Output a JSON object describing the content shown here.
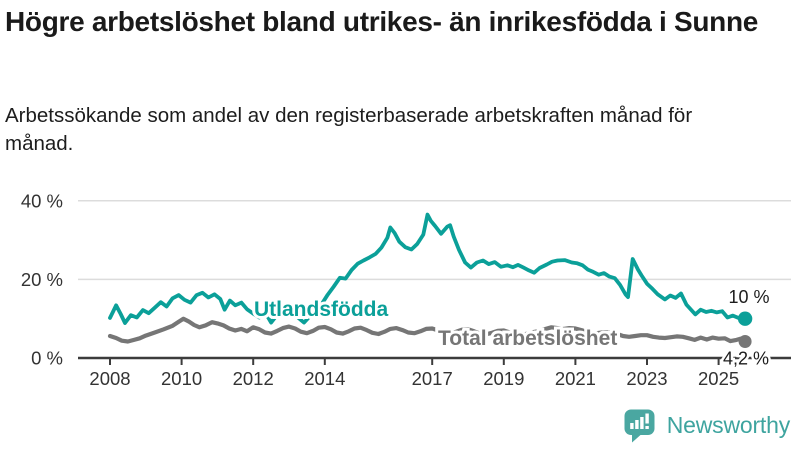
{
  "header": {
    "title": "Högre arbetslöshet bland utrikes- än inrikesfödda i Sunne",
    "subtitle": "Arbetssökande som andel av den registerbaserade arbetskraften månad för månad."
  },
  "colors": {
    "accent_teal": "#0ba099",
    "logo_teal": "#4aa7a1",
    "brand_text_teal": "#3ea49f",
    "series_gray": "#767676",
    "gridline": "#dcdcdc",
    "axis": "#3c3c3c",
    "axis_text": "#333333",
    "end_label_text": "#1d1d1d"
  },
  "chart_data": {
    "type": "line",
    "unit": "%",
    "x_axis": {
      "ticks": [
        2008,
        2010,
        2012,
        2014,
        2017,
        2019,
        2021,
        2023,
        2025
      ],
      "tick_labels": [
        "2008",
        "2010",
        "2012",
        "2014",
        "2017",
        "2019",
        "2021",
        "2023",
        "2025"
      ],
      "range": [
        2007.6,
        2026.2
      ]
    },
    "y_axis": {
      "ticks": [
        0,
        20,
        40
      ],
      "tick_labels": [
        "0 %",
        "20 %",
        "40 %"
      ],
      "range": [
        0,
        42
      ],
      "gridlines": true
    },
    "legend_position": "inline-labels",
    "series": [
      {
        "name": "Total arbetslöshet",
        "color": "#767676",
        "end_label": "4,2 %",
        "end_value": 4.2,
        "points": [
          [
            2008.0,
            5.6
          ],
          [
            2008.17,
            5.1
          ],
          [
            2008.33,
            4.4
          ],
          [
            2008.5,
            4.2
          ],
          [
            2008.67,
            4.6
          ],
          [
            2008.83,
            5.0
          ],
          [
            2009.0,
            5.7
          ],
          [
            2009.25,
            6.5
          ],
          [
            2009.5,
            7.3
          ],
          [
            2009.75,
            8.2
          ],
          [
            2009.92,
            9.2
          ],
          [
            2010.05,
            10.0
          ],
          [
            2010.2,
            9.3
          ],
          [
            2010.35,
            8.4
          ],
          [
            2010.5,
            7.8
          ],
          [
            2010.67,
            8.3
          ],
          [
            2010.85,
            9.1
          ],
          [
            2011.0,
            8.8
          ],
          [
            2011.17,
            8.3
          ],
          [
            2011.33,
            7.5
          ],
          [
            2011.5,
            7.0
          ],
          [
            2011.67,
            7.4
          ],
          [
            2011.83,
            6.8
          ],
          [
            2012.0,
            7.8
          ],
          [
            2012.17,
            7.3
          ],
          [
            2012.33,
            6.5
          ],
          [
            2012.5,
            6.2
          ],
          [
            2012.67,
            6.9
          ],
          [
            2012.83,
            7.6
          ],
          [
            2013.0,
            8.0
          ],
          [
            2013.17,
            7.5
          ],
          [
            2013.33,
            6.7
          ],
          [
            2013.5,
            6.3
          ],
          [
            2013.67,
            6.9
          ],
          [
            2013.83,
            7.7
          ],
          [
            2014.0,
            7.9
          ],
          [
            2014.17,
            7.3
          ],
          [
            2014.33,
            6.5
          ],
          [
            2014.5,
            6.2
          ],
          [
            2014.67,
            6.8
          ],
          [
            2014.83,
            7.5
          ],
          [
            2015.0,
            7.7
          ],
          [
            2015.17,
            7.1
          ],
          [
            2015.33,
            6.4
          ],
          [
            2015.5,
            6.1
          ],
          [
            2015.67,
            6.7
          ],
          [
            2015.83,
            7.4
          ],
          [
            2016.0,
            7.6
          ],
          [
            2016.17,
            7.1
          ],
          [
            2016.33,
            6.5
          ],
          [
            2016.5,
            6.3
          ],
          [
            2016.67,
            6.8
          ],
          [
            2016.83,
            7.4
          ],
          [
            2017.0,
            7.5
          ],
          [
            2017.17,
            7.0
          ],
          [
            2017.33,
            6.4
          ],
          [
            2017.5,
            6.2
          ],
          [
            2017.67,
            6.7
          ],
          [
            2017.83,
            7.2
          ],
          [
            2018.0,
            7.3
          ],
          [
            2018.17,
            6.8
          ],
          [
            2018.33,
            6.2
          ],
          [
            2018.5,
            6.0
          ],
          [
            2018.67,
            6.4
          ],
          [
            2018.83,
            6.9
          ],
          [
            2019.0,
            7.0
          ],
          [
            2019.17,
            6.5
          ],
          [
            2019.33,
            6.1
          ],
          [
            2019.5,
            5.9
          ],
          [
            2019.67,
            6.2
          ],
          [
            2019.83,
            6.6
          ],
          [
            2020.0,
            6.9
          ],
          [
            2020.17,
            7.4
          ],
          [
            2020.33,
            7.8
          ],
          [
            2020.5,
            7.6
          ],
          [
            2020.67,
            7.4
          ],
          [
            2020.83,
            7.6
          ],
          [
            2021.0,
            7.5
          ],
          [
            2021.17,
            7.1
          ],
          [
            2021.33,
            6.6
          ],
          [
            2021.5,
            6.2
          ],
          [
            2021.67,
            6.4
          ],
          [
            2021.83,
            6.6
          ],
          [
            2022.0,
            6.5
          ],
          [
            2022.17,
            6.1
          ],
          [
            2022.33,
            5.6
          ],
          [
            2022.5,
            5.4
          ],
          [
            2022.67,
            5.6
          ],
          [
            2022.83,
            5.8
          ],
          [
            2023.0,
            5.8
          ],
          [
            2023.17,
            5.4
          ],
          [
            2023.33,
            5.2
          ],
          [
            2023.5,
            5.1
          ],
          [
            2023.67,
            5.3
          ],
          [
            2023.83,
            5.5
          ],
          [
            2024.0,
            5.4
          ],
          [
            2024.17,
            5.0
          ],
          [
            2024.33,
            4.6
          ],
          [
            2024.5,
            5.2
          ],
          [
            2024.67,
            4.7
          ],
          [
            2024.83,
            5.2
          ],
          [
            2025.0,
            4.9
          ],
          [
            2025.17,
            5.0
          ],
          [
            2025.33,
            4.3
          ],
          [
            2025.5,
            4.6
          ],
          [
            2025.62,
            4.9
          ],
          [
            2025.74,
            4.2
          ]
        ]
      },
      {
        "name": "Utlandsfödda",
        "color": "#0ba099",
        "end_label": "10 %",
        "end_value": 10,
        "points": [
          [
            2008.0,
            10.2
          ],
          [
            2008.08,
            11.7
          ],
          [
            2008.17,
            13.4
          ],
          [
            2008.3,
            11.2
          ],
          [
            2008.42,
            8.9
          ],
          [
            2008.58,
            10.9
          ],
          [
            2008.75,
            10.3
          ],
          [
            2008.92,
            12.2
          ],
          [
            2009.08,
            11.4
          ],
          [
            2009.25,
            12.8
          ],
          [
            2009.42,
            14.2
          ],
          [
            2009.58,
            13.1
          ],
          [
            2009.75,
            15.2
          ],
          [
            2009.92,
            16.0
          ],
          [
            2010.08,
            14.8
          ],
          [
            2010.25,
            14.1
          ],
          [
            2010.42,
            16.0
          ],
          [
            2010.58,
            16.6
          ],
          [
            2010.75,
            15.4
          ],
          [
            2010.92,
            16.2
          ],
          [
            2011.08,
            15.0
          ],
          [
            2011.2,
            12.3
          ],
          [
            2011.35,
            14.6
          ],
          [
            2011.5,
            13.4
          ],
          [
            2011.67,
            14.1
          ],
          [
            2011.83,
            12.4
          ],
          [
            2012.0,
            11.3
          ],
          [
            2012.17,
            10.3
          ],
          [
            2012.33,
            11.7
          ],
          [
            2012.5,
            9.0
          ],
          [
            2012.67,
            11.0
          ],
          [
            2012.83,
            12.3
          ],
          [
            2013.0,
            13.2
          ],
          [
            2013.17,
            10.9
          ],
          [
            2013.42,
            9.0
          ],
          [
            2013.58,
            10.6
          ],
          [
            2013.75,
            12.0
          ],
          [
            2013.92,
            13.8
          ],
          [
            2014.08,
            16.1
          ],
          [
            2014.25,
            18.2
          ],
          [
            2014.42,
            20.4
          ],
          [
            2014.58,
            20.2
          ],
          [
            2014.75,
            22.4
          ],
          [
            2014.92,
            24.0
          ],
          [
            2015.08,
            24.8
          ],
          [
            2015.25,
            25.6
          ],
          [
            2015.42,
            26.5
          ],
          [
            2015.58,
            28.1
          ],
          [
            2015.75,
            30.6
          ],
          [
            2015.83,
            33.2
          ],
          [
            2015.95,
            31.8
          ],
          [
            2016.08,
            29.6
          ],
          [
            2016.25,
            28.2
          ],
          [
            2016.42,
            27.6
          ],
          [
            2016.58,
            29.0
          ],
          [
            2016.75,
            31.4
          ],
          [
            2016.87,
            36.5
          ],
          [
            2016.96,
            34.9
          ],
          [
            2017.08,
            33.6
          ],
          [
            2017.25,
            31.6
          ],
          [
            2017.42,
            33.4
          ],
          [
            2017.5,
            33.8
          ],
          [
            2017.6,
            30.9
          ],
          [
            2017.75,
            27.5
          ],
          [
            2017.92,
            24.3
          ],
          [
            2018.08,
            23.0
          ],
          [
            2018.25,
            24.3
          ],
          [
            2018.42,
            24.8
          ],
          [
            2018.58,
            23.9
          ],
          [
            2018.75,
            24.4
          ],
          [
            2018.92,
            23.2
          ],
          [
            2019.1,
            23.6
          ],
          [
            2019.25,
            23.1
          ],
          [
            2019.4,
            23.7
          ],
          [
            2019.55,
            23.0
          ],
          [
            2019.7,
            22.3
          ],
          [
            2019.85,
            21.7
          ],
          [
            2020.0,
            22.9
          ],
          [
            2020.2,
            23.8
          ],
          [
            2020.35,
            24.5
          ],
          [
            2020.5,
            24.8
          ],
          [
            2020.7,
            24.9
          ],
          [
            2020.9,
            24.3
          ],
          [
            2021.05,
            24.1
          ],
          [
            2021.2,
            23.6
          ],
          [
            2021.35,
            22.5
          ],
          [
            2021.5,
            21.9
          ],
          [
            2021.65,
            21.2
          ],
          [
            2021.8,
            21.6
          ],
          [
            2021.95,
            20.7
          ],
          [
            2022.1,
            20.3
          ],
          [
            2022.25,
            18.6
          ],
          [
            2022.4,
            16.2
          ],
          [
            2022.47,
            15.5
          ],
          [
            2022.6,
            25.2
          ],
          [
            2022.75,
            22.5
          ],
          [
            2022.85,
            21.0
          ],
          [
            2023.0,
            18.9
          ],
          [
            2023.15,
            17.6
          ],
          [
            2023.3,
            16.2
          ],
          [
            2023.5,
            14.9
          ],
          [
            2023.65,
            15.9
          ],
          [
            2023.8,
            15.3
          ],
          [
            2023.95,
            16.4
          ],
          [
            2024.1,
            13.6
          ],
          [
            2024.35,
            11.1
          ],
          [
            2024.5,
            12.3
          ],
          [
            2024.65,
            11.7
          ],
          [
            2024.8,
            12.0
          ],
          [
            2024.95,
            11.6
          ],
          [
            2025.1,
            11.9
          ],
          [
            2025.25,
            10.3
          ],
          [
            2025.4,
            10.8
          ],
          [
            2025.55,
            10.2
          ],
          [
            2025.74,
            10.0
          ]
        ]
      }
    ]
  },
  "footer": {
    "brand": "Newsworthy"
  }
}
